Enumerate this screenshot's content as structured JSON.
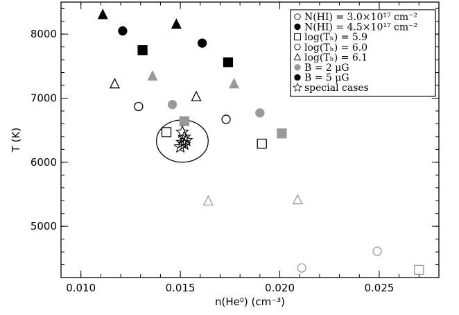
{
  "chart_data": {
    "type": "scatter",
    "xlabel": "n(He⁰) (cm⁻³)",
    "ylabel": "T (K)",
    "xlim": [
      0.009,
      0.028
    ],
    "ylim": [
      4200,
      8500
    ],
    "xticks": [
      0.01,
      0.015,
      0.02,
      0.025
    ],
    "xtick_labels": [
      "0.010",
      "0.015",
      "0.020",
      "0.025"
    ],
    "yticks": [
      5000,
      6000,
      7000,
      8000
    ],
    "ytick_labels": [
      "5000",
      "6000",
      "7000",
      "8000"
    ],
    "colors": {
      "gray": "#999999",
      "black": "#000000"
    },
    "legend": {
      "placement": "top-right",
      "entries": [
        {
          "marker": "circle",
          "filled": false,
          "color": "#000000",
          "label": "N(HI) = 3.0×10¹⁷ cm⁻²"
        },
        {
          "marker": "circle",
          "filled": true,
          "color": "#000000",
          "label": "N(HI) = 4.5×10¹⁷ cm⁻²"
        },
        {
          "marker": "square",
          "filled": false,
          "color": "#000000",
          "label": "log(Tₕ) = 5.9"
        },
        {
          "marker": "circle",
          "filled": false,
          "color": "#000000",
          "label": "log(Tₕ) = 6.0"
        },
        {
          "marker": "triangle",
          "filled": false,
          "color": "#000000",
          "label": "log(Tₕ) = 6.1"
        },
        {
          "marker": "circle",
          "filled": true,
          "color": "#999999",
          "label": "B = 2 μG"
        },
        {
          "marker": "circle",
          "filled": true,
          "color": "#000000",
          "label": "B = 5 μG"
        },
        {
          "marker": "star",
          "filled": false,
          "color": "#000000",
          "label": "special cases"
        }
      ]
    },
    "points": [
      {
        "x": 0.0111,
        "y": 8300,
        "marker": "triangle",
        "filled": true,
        "color": "#000000"
      },
      {
        "x": 0.0121,
        "y": 8050,
        "marker": "circle",
        "filled": true,
        "color": "#000000"
      },
      {
        "x": 0.0131,
        "y": 7750,
        "marker": "square",
        "filled": true,
        "color": "#000000"
      },
      {
        "x": 0.0148,
        "y": 8150,
        "marker": "triangle",
        "filled": true,
        "color": "#000000"
      },
      {
        "x": 0.0161,
        "y": 7860,
        "marker": "circle",
        "filled": true,
        "color": "#000000"
      },
      {
        "x": 0.0174,
        "y": 7560,
        "marker": "square",
        "filled": true,
        "color": "#000000"
      },
      {
        "x": 0.0117,
        "y": 7220,
        "marker": "triangle",
        "filled": false,
        "color": "#000000"
      },
      {
        "x": 0.0136,
        "y": 7340,
        "marker": "triangle",
        "filled": true,
        "color": "#999999"
      },
      {
        "x": 0.0158,
        "y": 7020,
        "marker": "triangle",
        "filled": false,
        "color": "#000000"
      },
      {
        "x": 0.0177,
        "y": 7220,
        "marker": "triangle",
        "filled": true,
        "color": "#999999"
      },
      {
        "x": 0.0129,
        "y": 6870,
        "marker": "circle",
        "filled": false,
        "color": "#000000"
      },
      {
        "x": 0.0146,
        "y": 6900,
        "marker": "circle",
        "filled": true,
        "color": "#999999"
      },
      {
        "x": 0.0173,
        "y": 6670,
        "marker": "circle",
        "filled": false,
        "color": "#000000"
      },
      {
        "x": 0.019,
        "y": 6770,
        "marker": "circle",
        "filled": true,
        "color": "#999999"
      },
      {
        "x": 0.0143,
        "y": 6470,
        "marker": "square",
        "filled": false,
        "color": "#000000"
      },
      {
        "x": 0.0152,
        "y": 6640,
        "marker": "square",
        "filled": true,
        "color": "#999999"
      },
      {
        "x": 0.0191,
        "y": 6290,
        "marker": "square",
        "filled": false,
        "color": "#000000"
      },
      {
        "x": 0.0201,
        "y": 6450,
        "marker": "square",
        "filled": true,
        "color": "#999999"
      },
      {
        "x": 0.0164,
        "y": 5390,
        "marker": "triangle",
        "filled": false,
        "color": "#999999"
      },
      {
        "x": 0.0209,
        "y": 5410,
        "marker": "triangle",
        "filled": false,
        "color": "#999999"
      },
      {
        "x": 0.0211,
        "y": 4350,
        "marker": "circle",
        "filled": false,
        "color": "#999999"
      },
      {
        "x": 0.0249,
        "y": 4610,
        "marker": "circle",
        "filled": false,
        "color": "#999999"
      },
      {
        "x": 0.027,
        "y": 4320,
        "marker": "square",
        "filled": false,
        "color": "#999999"
      },
      {
        "x": 0.0151,
        "y": 6470,
        "marker": "star",
        "filled": false,
        "color": "#000000"
      },
      {
        "x": 0.0152,
        "y": 6390,
        "marker": "star",
        "filled": false,
        "color": "#000000"
      },
      {
        "x": 0.0153,
        "y": 6340,
        "marker": "star",
        "filled": false,
        "color": "#000000"
      },
      {
        "x": 0.0151,
        "y": 6310,
        "marker": "star",
        "filled": false,
        "color": "#000000"
      },
      {
        "x": 0.015,
        "y": 6240,
        "marker": "star",
        "filled": false,
        "color": "#000000"
      },
      {
        "x": 0.0152,
        "y": 6280,
        "marker": "star",
        "filled": false,
        "color": "#000000"
      }
    ],
    "annotations": [
      {
        "type": "ellipse",
        "center": [
          0.0151,
          6330
        ],
        "radius_x": 0.0013,
        "radius_y": 330
      }
    ]
  }
}
